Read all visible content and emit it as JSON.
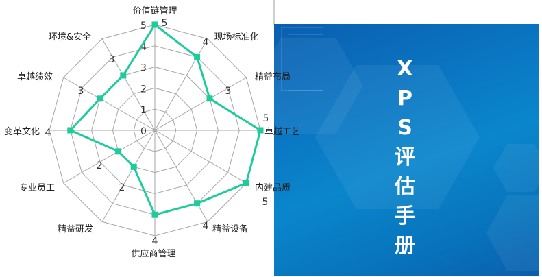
{
  "chart_data": {
    "type": "radar",
    "categories": [
      "价值链管理",
      "现场标准化",
      "精益布局",
      "卓越工艺",
      "内建品质",
      "精益设备",
      "供应商管理",
      "精益研发",
      "专业员工",
      "变革文化",
      "卓越绩效",
      "环境&安全"
    ],
    "values": [
      5,
      4,
      3,
      5,
      5,
      4,
      4,
      2,
      2,
      4,
      3,
      3
    ],
    "rlim": [
      0,
      5
    ],
    "ticks": [
      "0",
      "1",
      "2",
      "3",
      "4",
      "5"
    ],
    "grid": true,
    "series_color": "#1fcb9a",
    "grid_color": "#a6a6a6"
  },
  "panel": {
    "title_chars": [
      "X",
      "P",
      "S",
      "评",
      "估",
      "手",
      "册"
    ],
    "background_color": "#0a78c4"
  }
}
